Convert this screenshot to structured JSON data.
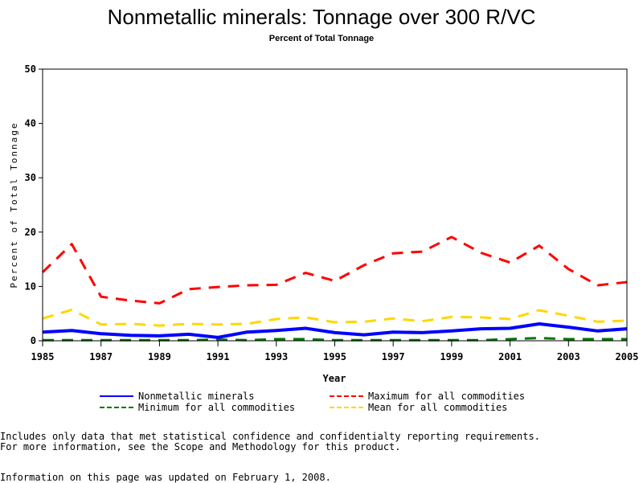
{
  "chart_data": {
    "type": "line",
    "title": "Nonmetallic minerals: Tonnage over 300 R/VC",
    "subtitle": "Percent of Total Tonnage",
    "xlabel": "Year",
    "ylabel": "Percent of Total Tonnage",
    "xlim": [
      1985,
      2005
    ],
    "ylim": [
      0,
      50
    ],
    "x_ticks": [
      "1985",
      "1987",
      "1989",
      "1991",
      "1993",
      "1995",
      "1997",
      "1999",
      "2001",
      "2003",
      "2005"
    ],
    "y_ticks": [
      "0",
      "10",
      "20",
      "30",
      "40",
      "50"
    ],
    "grid": false,
    "legend_position": "bottom",
    "x": [
      1985,
      1986,
      1987,
      1988,
      1989,
      1990,
      1991,
      1992,
      1993,
      1994,
      1995,
      1996,
      1997,
      1998,
      1999,
      2000,
      2001,
      2002,
      2003,
      2004,
      2005
    ],
    "series": [
      {
        "name": "Nonmetallic minerals",
        "color": "#0000ff",
        "style": "solid",
        "values": [
          1.6,
          1.9,
          1.3,
          1.0,
          0.9,
          1.2,
          0.6,
          1.6,
          1.9,
          2.3,
          1.5,
          1.1,
          1.6,
          1.5,
          1.8,
          2.2,
          2.3,
          3.1,
          2.5,
          1.8,
          2.2
        ]
      },
      {
        "name": "Maximum for all commodities",
        "color": "#ff0000",
        "style": "dashed",
        "values": [
          12.6,
          17.8,
          8.1,
          7.4,
          6.9,
          9.5,
          9.9,
          10.2,
          10.3,
          12.5,
          11.0,
          13.9,
          16.1,
          16.4,
          19.1,
          16.2,
          14.4,
          17.5,
          13.2,
          10.2,
          10.8
        ]
      },
      {
        "name": "Minimum for all commodities",
        "color": "#007700",
        "style": "dashed",
        "values": [
          0.1,
          0.1,
          0.1,
          0.1,
          0.1,
          0.1,
          0.2,
          0.1,
          0.3,
          0.3,
          0.1,
          0.1,
          0.1,
          0.1,
          0.1,
          0.1,
          0.3,
          0.5,
          0.3,
          0.3,
          0.3
        ]
      },
      {
        "name": "Mean for all commodities",
        "color": "#ffd700",
        "style": "dashed",
        "values": [
          4.1,
          5.7,
          3.0,
          3.1,
          2.8,
          3.1,
          3.0,
          3.1,
          4.0,
          4.3,
          3.4,
          3.5,
          4.1,
          3.6,
          4.4,
          4.3,
          4.0,
          5.6,
          4.6,
          3.5,
          3.7
        ]
      }
    ]
  },
  "legend_order": [
    0,
    1,
    2,
    3
  ],
  "notes": {
    "line1": "Includes only data that met statistical confidence and confidentialty reporting requirements.",
    "line2": "For more information, see the Scope and Methodology for this product.",
    "updated": "Information on this page was updated on February 1, 2008."
  }
}
